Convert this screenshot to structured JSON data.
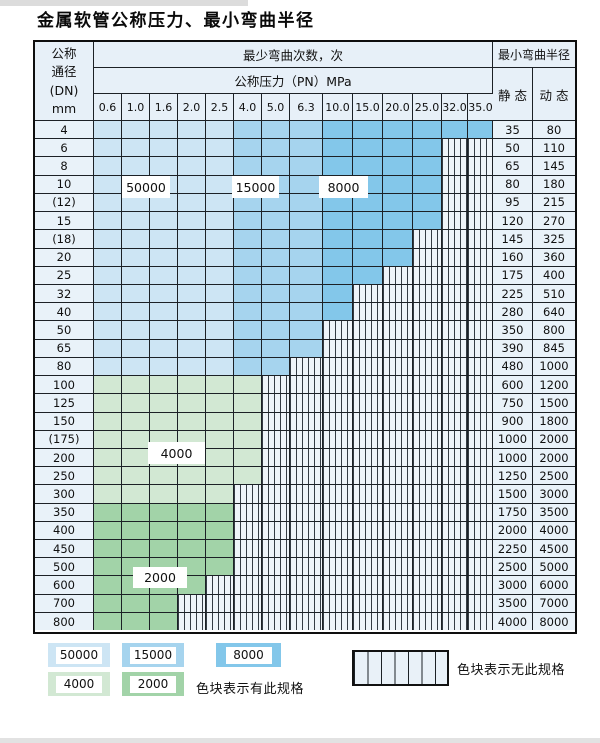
{
  "title": "金属软管公称压力、最小弯曲半径",
  "colors": {
    "cycles_50000": "#cde5f4",
    "cycles_15000": "#a6d4ee",
    "cycles_8000": "#83c7ea",
    "cycles_4000": "#d2e8d3",
    "cycles_2000": "#a2d3a8",
    "no_spec_bg": "#eef4f9",
    "plain_cell_bg": "#e9f2f9",
    "grid_line": "#1c2126"
  },
  "table": {
    "header": {
      "dn_label_lines": [
        "公称",
        "通径",
        "(DN)",
        "mm"
      ],
      "cycles_label": "最少弯曲次数，次",
      "pressure_label": "公称压力（PN）MPa",
      "radius_label": "最小弯曲半径",
      "static_label": "静 态",
      "dynamic_label": "动 态",
      "pressure_columns": [
        "0.6",
        "1.0",
        "1.6",
        "2.0",
        "2.5",
        "4.0",
        "5.0",
        "6.3",
        "10.0",
        "15.0",
        "20.0",
        "25.0",
        "32.0",
        "35.0"
      ]
    },
    "overlay_labels": [
      "50000",
      "15000",
      "8000",
      "4000",
      "2000"
    ],
    "zone_cycle_bands": {
      "blue_50000_columns": [
        "0.6",
        "1.0",
        "1.6",
        "2.0",
        "2.5"
      ],
      "blue_15000_columns": [
        "4.0",
        "5.0",
        "6.3"
      ],
      "blue_8000_columns": [
        "10.0",
        "15.0",
        "20.0",
        "25.0",
        "32.0",
        "35.0"
      ]
    },
    "rows": [
      {
        "dn": "4",
        "static_radius": "35",
        "dynamic_radius": "80",
        "colored_through_pn": "35.0",
        "zone": "blue"
      },
      {
        "dn": "6",
        "static_radius": "50",
        "dynamic_radius": "110",
        "colored_through_pn": "25.0",
        "zone": "blue"
      },
      {
        "dn": "8",
        "static_radius": "65",
        "dynamic_radius": "145",
        "colored_through_pn": "25.0",
        "zone": "blue"
      },
      {
        "dn": "10",
        "static_radius": "80",
        "dynamic_radius": "180",
        "colored_through_pn": "25.0",
        "zone": "blue"
      },
      {
        "dn": "(12)",
        "static_radius": "95",
        "dynamic_radius": "215",
        "colored_through_pn": "25.0",
        "zone": "blue"
      },
      {
        "dn": "15",
        "static_radius": "120",
        "dynamic_radius": "270",
        "colored_through_pn": "25.0",
        "zone": "blue"
      },
      {
        "dn": "(18)",
        "static_radius": "145",
        "dynamic_radius": "325",
        "colored_through_pn": "20.0",
        "zone": "blue"
      },
      {
        "dn": "20",
        "static_radius": "160",
        "dynamic_radius": "360",
        "colored_through_pn": "20.0",
        "zone": "blue"
      },
      {
        "dn": "25",
        "static_radius": "175",
        "dynamic_radius": "400",
        "colored_through_pn": "15.0",
        "zone": "blue"
      },
      {
        "dn": "32",
        "static_radius": "225",
        "dynamic_radius": "510",
        "colored_through_pn": "10.0",
        "zone": "blue"
      },
      {
        "dn": "40",
        "static_radius": "280",
        "dynamic_radius": "640",
        "colored_through_pn": "10.0",
        "zone": "blue"
      },
      {
        "dn": "50",
        "static_radius": "350",
        "dynamic_radius": "800",
        "colored_through_pn": "6.3",
        "zone": "blue"
      },
      {
        "dn": "65",
        "static_radius": "390",
        "dynamic_radius": "845",
        "colored_through_pn": "6.3",
        "zone": "blue"
      },
      {
        "dn": "80",
        "static_radius": "480",
        "dynamic_radius": "1000",
        "colored_through_pn": "5.0",
        "zone": "blue"
      },
      {
        "dn": "100",
        "static_radius": "600",
        "dynamic_radius": "1200",
        "colored_through_pn": "4.0",
        "zone": "green-4000"
      },
      {
        "dn": "125",
        "static_radius": "750",
        "dynamic_radius": "1500",
        "colored_through_pn": "4.0",
        "zone": "green-4000"
      },
      {
        "dn": "150",
        "static_radius": "900",
        "dynamic_radius": "1800",
        "colored_through_pn": "4.0",
        "zone": "green-4000"
      },
      {
        "dn": "(175)",
        "static_radius": "1000",
        "dynamic_radius": "2000",
        "colored_through_pn": "4.0",
        "zone": "green-4000"
      },
      {
        "dn": "200",
        "static_radius": "1000",
        "dynamic_radius": "2000",
        "colored_through_pn": "4.0",
        "zone": "green-4000"
      },
      {
        "dn": "250",
        "static_radius": "1250",
        "dynamic_radius": "2500",
        "colored_through_pn": "4.0",
        "zone": "green-4000"
      },
      {
        "dn": "300",
        "static_radius": "1500",
        "dynamic_radius": "3000",
        "colored_through_pn": "2.5",
        "zone": "green-4000"
      },
      {
        "dn": "350",
        "static_radius": "1750",
        "dynamic_radius": "3500",
        "colored_through_pn": "2.5",
        "zone": "green-2000"
      },
      {
        "dn": "400",
        "static_radius": "2000",
        "dynamic_radius": "4000",
        "colored_through_pn": "2.5",
        "zone": "green-2000"
      },
      {
        "dn": "450",
        "static_radius": "2250",
        "dynamic_radius": "4500",
        "colored_through_pn": "2.5",
        "zone": "green-2000"
      },
      {
        "dn": "500",
        "static_radius": "2500",
        "dynamic_radius": "5000",
        "colored_through_pn": "2.5",
        "zone": "green-2000"
      },
      {
        "dn": "600",
        "static_radius": "3000",
        "dynamic_radius": "6000",
        "colored_through_pn": "2.0",
        "zone": "green-2000"
      },
      {
        "dn": "700",
        "static_radius": "3500",
        "dynamic_radius": "7000",
        "colored_through_pn": "1.6",
        "zone": "green-2000"
      },
      {
        "dn": "800",
        "static_radius": "4000",
        "dynamic_radius": "8000",
        "colored_through_pn": "1.6",
        "zone": "green-2000"
      }
    ]
  },
  "legend": {
    "items": [
      {
        "label": "50000"
      },
      {
        "label": "15000"
      },
      {
        "label": "8000"
      },
      {
        "label": "4000"
      },
      {
        "label": "2000"
      }
    ],
    "has_spec_note": "色块表示有此规格",
    "no_spec_note": "色块表示无此规格"
  }
}
